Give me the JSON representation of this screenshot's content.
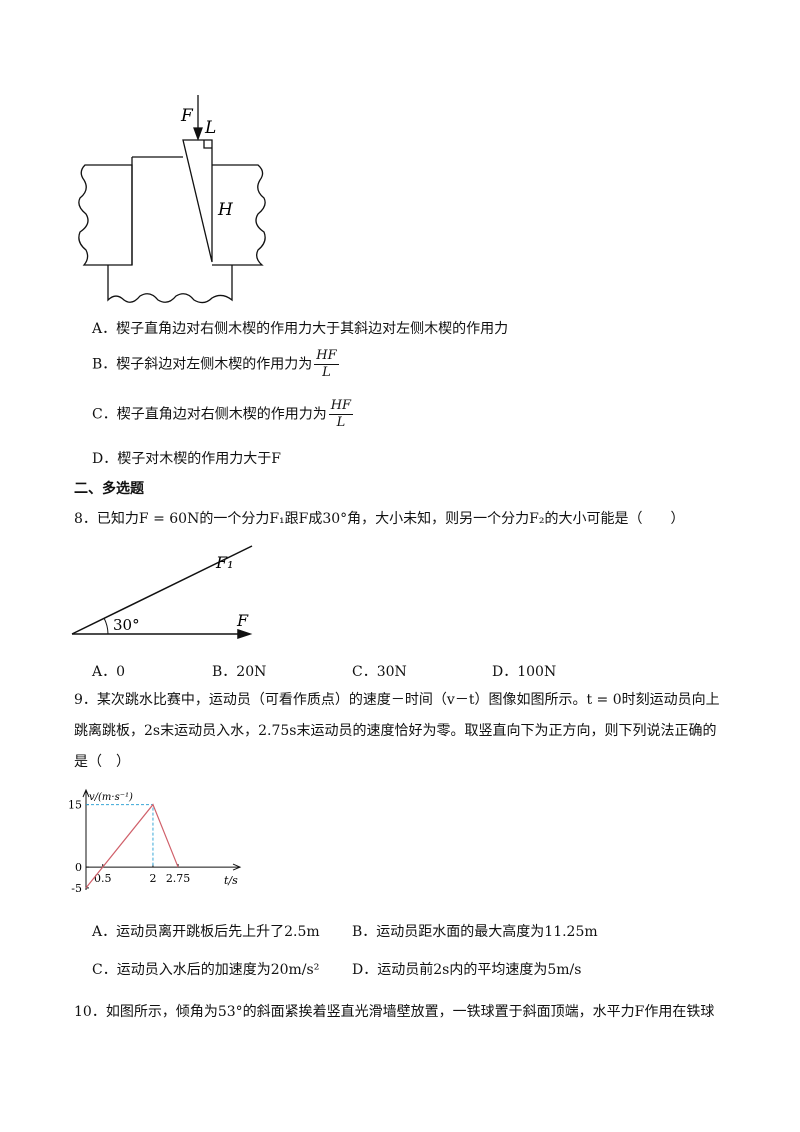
{
  "question7": {
    "figure_labels": {
      "force": "F",
      "short_side": "L",
      "long_side": "H"
    },
    "options": [
      {
        "letter": "A．",
        "text": "楔子直角边对右侧木楔的作用力大于其斜边对左侧木楔的作用力"
      },
      {
        "letter": "B．",
        "text": "楔子斜边对左侧木楔的作用力为",
        "numerator": "HF",
        "denominator": "L"
      },
      {
        "letter": "C．",
        "text": "楔子直角边对右侧木楔的作用力为",
        "numerator": "HF",
        "denominator": "L"
      },
      {
        "letter": "D．",
        "text": "楔子对木楔的作用力大于F"
      }
    ]
  },
  "section_heading": "二、多选题",
  "question8": {
    "stem": "8．已知力F = 60N的一个分力F₁跟F成30°角，大小未知，则另一个分力F₂的大小可能是（　　）",
    "figure_labels": {
      "component": "F₁",
      "angle": "30°",
      "force": "F"
    },
    "options": [
      {
        "letter": "A．",
        "text": "0"
      },
      {
        "letter": "B．",
        "text": "20N"
      },
      {
        "letter": "C．",
        "text": "30N"
      },
      {
        "letter": "D．",
        "text": "100N"
      }
    ]
  },
  "question9": {
    "stem": "9．某次跳水比赛中，运动员（可看作质点）的速度－时间（v－t）图像如图所示。t = 0时刻运动员向上跳离跳板，2s末运动员入水，2.75s末运动员的速度恰好为零。取竖直向下为正方向，则下列说法正确的是（　）",
    "graph": {
      "type": "line",
      "x_label": "t/s",
      "y_label": "v/(m·s⁻¹)",
      "x": [
        0,
        2,
        2.75
      ],
      "values": [
        -5,
        15,
        0
      ],
      "xlim": [
        0,
        4.6
      ],
      "ylim": [
        -5.5,
        18.5
      ],
      "xticks": [
        0.5,
        2,
        2.75
      ],
      "yticks": [
        15,
        0,
        -5
      ],
      "color": "#d0606a"
    },
    "options": [
      {
        "letter": "A．",
        "text": "运动员离开跳板后先上升了2.5m"
      },
      {
        "letter": "B．",
        "text": "运动员距水面的最大高度为11.25m"
      },
      {
        "letter": "C．",
        "text": "运动员入水后的加速度为20m/s²"
      },
      {
        "letter": "D．",
        "text": "运动员前2s内的平均速度为5m/s"
      }
    ]
  },
  "question10": {
    "stem": "10．如图所示，倾角为53°的斜面紧挨着竖直光滑墙壁放置，一铁球置于斜面顶端，水平力F作用在铁球"
  }
}
